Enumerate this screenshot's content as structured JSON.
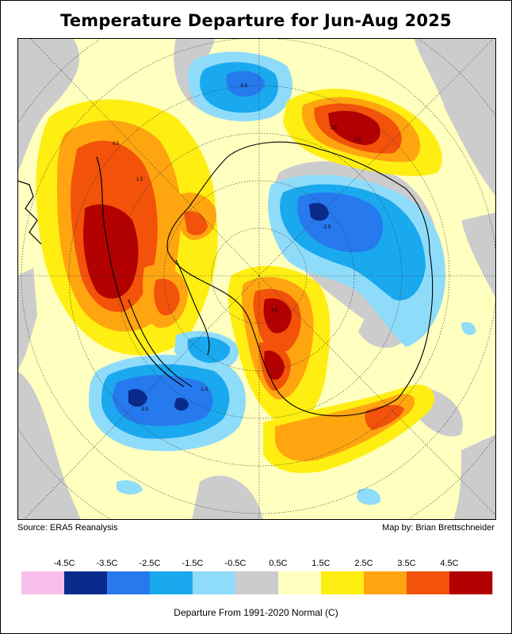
{
  "title": "Temperature Departure for Jun-Aug 2025",
  "source": "Source: ERA5 Reanalysis",
  "author": "Map by: Brian Brettschneider",
  "legend": {
    "title": "Departure From 1991-2020 Normal (C)",
    "tick_labels": [
      "-4.5C",
      "-3.5C",
      "-2.5C",
      "-1.5C",
      "-0.5C",
      "0.5C",
      "1.5C",
      "2.5C",
      "3.5C",
      "4.5C"
    ],
    "bins": [
      {
        "color": "#f7bfe9"
      },
      {
        "color": "#0a2a8c"
      },
      {
        "color": "#2779ee"
      },
      {
        "color": "#1aa9ee"
      },
      {
        "color": "#8fdcfa"
      },
      {
        "color": "#cccccc"
      },
      {
        "color": "#ffffbf"
      },
      {
        "color": "#ffee11"
      },
      {
        "color": "#ffa510"
      },
      {
        "color": "#f2520a"
      },
      {
        "color": "#b30000"
      }
    ]
  },
  "contour_labels": [
    "0.5",
    "1.5",
    "2.5",
    "3.5",
    "4.5",
    "-0.5",
    "-1.5",
    "-2.5",
    "-3.5"
  ]
}
